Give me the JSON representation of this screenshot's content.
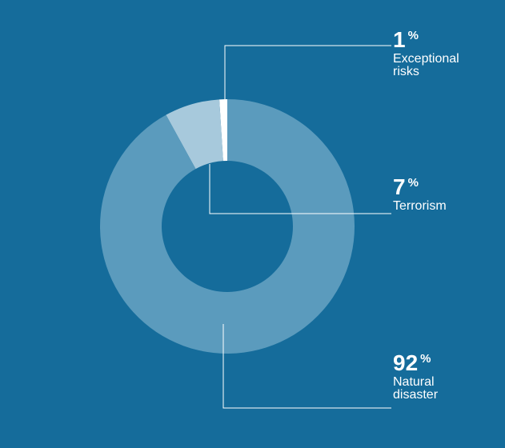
{
  "chart_data": {
    "type": "pie",
    "style": "donut",
    "categories": [
      "Exceptional risks",
      "Terrorism",
      "Natural disaster"
    ],
    "values": [
      1,
      7,
      92
    ],
    "unit": "%",
    "colors": [
      "#ffffff",
      "#a7c9dc",
      "#5b9bbd"
    ],
    "background": "#156c9b",
    "labels": [
      {
        "value": "1",
        "unit": "%",
        "lines": [
          "Exceptional",
          "risks"
        ]
      },
      {
        "value": "7",
        "unit": "%",
        "lines": [
          "Terrorism"
        ]
      },
      {
        "value": "92",
        "unit": "%",
        "lines": [
          "Natural",
          "disaster"
        ]
      }
    ]
  }
}
